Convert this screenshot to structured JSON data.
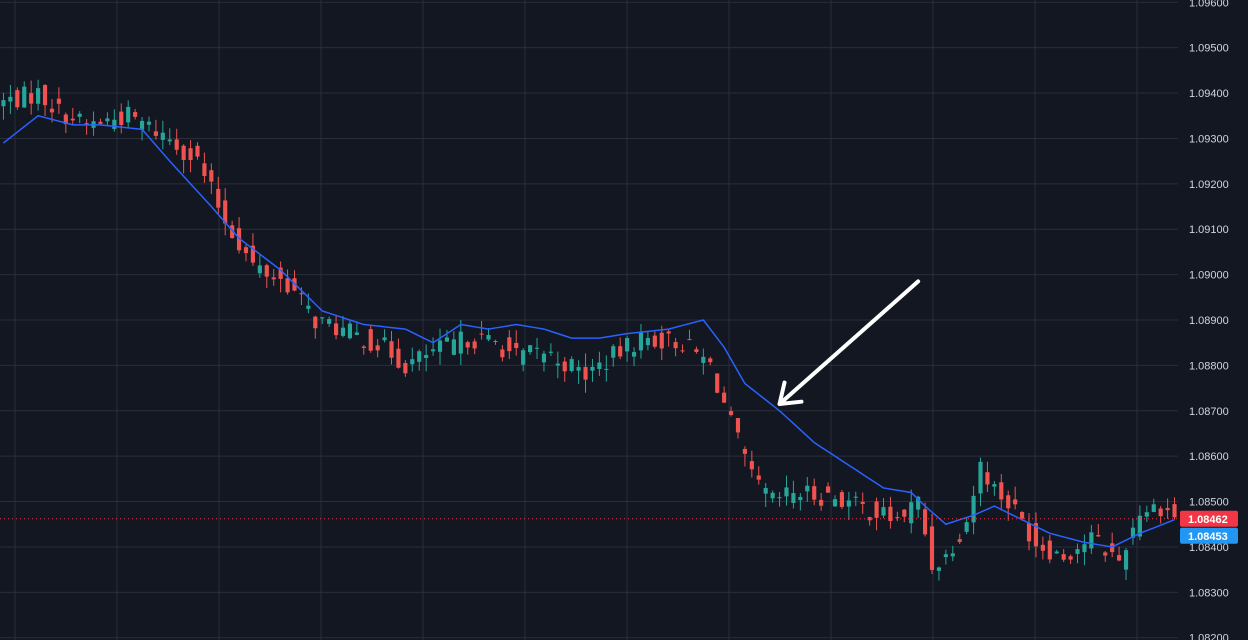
{
  "chart_data": {
    "type": "candlestick",
    "instrument": "",
    "ylim": [
      1.08195,
      1.09605
    ],
    "y_ticks": [
      "1.09600",
      "1.09500",
      "1.09400",
      "1.09300",
      "1.09200",
      "1.09100",
      "1.09000",
      "1.08900",
      "1.08800",
      "1.08700",
      "1.08600",
      "1.08500",
      "1.08400",
      "1.08300",
      "1.08200"
    ],
    "grid": true,
    "price_line": {
      "label": "1.08462",
      "value": 1.08462,
      "color": "#f23645"
    },
    "ma_label": {
      "label": "1.08453",
      "value": 1.08453,
      "color": "#2196f3"
    },
    "colors": {
      "up": "#26a69a",
      "down": "#ef5350",
      "ma": "#2962ff",
      "background": "#131722",
      "grid": "#2a2e39",
      "arrow": "#ffffff"
    },
    "arrow_annotation": {
      "direction": "down-left",
      "from_bar": 132,
      "from_price": 1.08985,
      "to_bar": 112,
      "to_price": 1.08715
    },
    "close_anchors": [
      [
        0,
        1.0938
      ],
      [
        5,
        1.094
      ],
      [
        8,
        1.0936
      ],
      [
        12,
        1.0933
      ],
      [
        18,
        1.0935
      ],
      [
        24,
        1.093
      ],
      [
        28,
        1.0925
      ],
      [
        32,
        1.0912
      ],
      [
        36,
        1.0902
      ],
      [
        41,
        1.0898
      ],
      [
        45,
        1.089
      ],
      [
        50,
        1.0887
      ],
      [
        55,
        1.0884
      ],
      [
        58,
        1.088
      ],
      [
        62,
        1.0883
      ],
      [
        67,
        1.0886
      ],
      [
        71,
        1.0885
      ],
      [
        74,
        1.0882
      ],
      [
        78,
        1.0883
      ],
      [
        84,
        1.0878
      ],
      [
        88,
        1.0882
      ],
      [
        92,
        1.0886
      ],
      [
        98,
        1.0885
      ],
      [
        102,
        1.088
      ],
      [
        106,
        1.0863
      ],
      [
        108,
        1.0855
      ],
      [
        111,
        1.085
      ],
      [
        114,
        1.0852
      ],
      [
        120,
        1.0851
      ],
      [
        125,
        1.0848
      ],
      [
        129,
        1.0846
      ],
      [
        132,
        1.085
      ],
      [
        134,
        1.0836
      ],
      [
        136,
        1.0838
      ],
      [
        139,
        1.0846
      ],
      [
        141,
        1.0858
      ],
      [
        143,
        1.0853
      ],
      [
        146,
        1.0848
      ],
      [
        149,
        1.0841
      ],
      [
        153,
        1.0838
      ],
      [
        157,
        1.0842
      ],
      [
        161,
        1.0837
      ],
      [
        164,
        1.0848
      ],
      [
        167,
        1.0849
      ],
      [
        169,
        1.0847
      ]
    ],
    "ma_anchors": [
      [
        0,
        1.0929
      ],
      [
        5,
        1.0935
      ],
      [
        10,
        1.0933
      ],
      [
        14,
        1.0933
      ],
      [
        20,
        1.0932
      ],
      [
        24,
        1.0925
      ],
      [
        30,
        1.0915
      ],
      [
        34,
        1.0908
      ],
      [
        40,
        1.0901
      ],
      [
        46,
        1.0892
      ],
      [
        52,
        1.0889
      ],
      [
        58,
        1.0888
      ],
      [
        62,
        1.0885
      ],
      [
        66,
        1.0889
      ],
      [
        70,
        1.0888
      ],
      [
        74,
        1.0889
      ],
      [
        78,
        1.0888
      ],
      [
        82,
        1.0886
      ],
      [
        86,
        1.0886
      ],
      [
        90,
        1.0887
      ],
      [
        96,
        1.0888
      ],
      [
        101,
        1.089
      ],
      [
        104,
        1.0884
      ],
      [
        107,
        1.0876
      ],
      [
        112,
        1.087
      ],
      [
        117,
        1.0863
      ],
      [
        122,
        1.0858
      ],
      [
        127,
        1.0853
      ],
      [
        131,
        1.0852
      ],
      [
        133,
        1.0849
      ],
      [
        136,
        1.0845
      ],
      [
        140,
        1.0847
      ],
      [
        143,
        1.0849
      ],
      [
        147,
        1.0846
      ],
      [
        151,
        1.0843
      ],
      [
        156,
        1.0841
      ],
      [
        160,
        1.084
      ],
      [
        164,
        1.0843
      ],
      [
        169,
        1.0846
      ]
    ],
    "bar_count": 170
  }
}
